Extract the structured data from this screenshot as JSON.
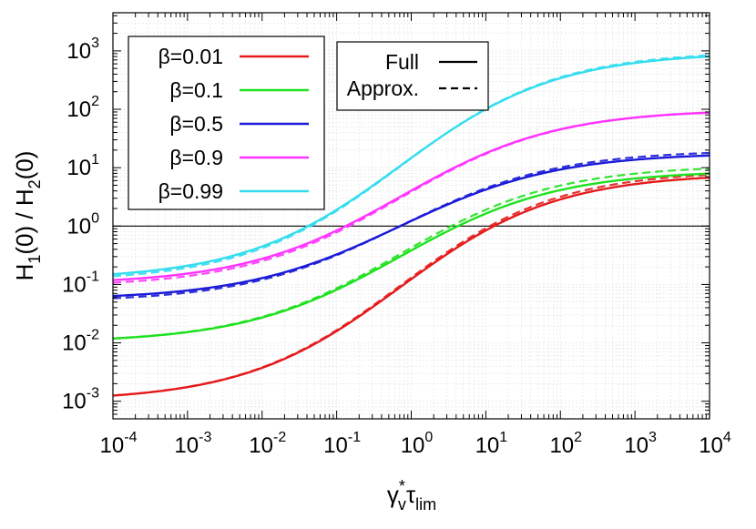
{
  "chart_data": {
    "type": "line",
    "x_scale": "log",
    "y_scale": "log",
    "xlim": [
      0.0001,
      10000
    ],
    "ylim": [
      0.0005,
      4500
    ],
    "grid": true,
    "x_ticks": [
      {
        "value": 0.0001,
        "base": "10",
        "exp": "-4"
      },
      {
        "value": 0.001,
        "base": "10",
        "exp": "-3"
      },
      {
        "value": 0.01,
        "base": "10",
        "exp": "-2"
      },
      {
        "value": 0.1,
        "base": "10",
        "exp": "-1"
      },
      {
        "value": 1,
        "base": "10",
        "exp": "0"
      },
      {
        "value": 10,
        "base": "10",
        "exp": "1"
      },
      {
        "value": 100,
        "base": "10",
        "exp": "2"
      },
      {
        "value": 1000,
        "base": "10",
        "exp": "3"
      },
      {
        "value": 10000,
        "base": "10",
        "exp": "4"
      }
    ],
    "y_ticks": [
      {
        "value": 0.001,
        "base": "10",
        "exp": "-3"
      },
      {
        "value": 0.01,
        "base": "10",
        "exp": "-2"
      },
      {
        "value": 0.1,
        "base": "10",
        "exp": "-1"
      },
      {
        "value": 1,
        "base": "10",
        "exp": "0"
      },
      {
        "value": 10,
        "base": "10",
        "exp": "1"
      },
      {
        "value": 100,
        "base": "10",
        "exp": "2"
      },
      {
        "value": 1000,
        "base": "10",
        "exp": "3"
      }
    ],
    "xlabel": {
      "main": "γ",
      "sup": "*",
      "sub1": "v",
      "mid": "τ",
      "sub2": "lim"
    },
    "ylabel": {
      "p1": "H",
      "s1": "1",
      "p2": "(0) / H",
      "s2": "2",
      "p3": "(0)"
    },
    "reference_line": {
      "y": 1
    },
    "legend_location": "top-left",
    "style_legend_location": "top-center",
    "series": [
      {
        "name": "β=0.01",
        "color": "#e41a1c",
        "low": 0.001,
        "high": 8
      },
      {
        "name": "β=0.1",
        "color": "#1ee11e",
        "low": 0.01,
        "high": 9
      },
      {
        "name": "β=0.5",
        "color": "#1a1ad8",
        "low": 0.055,
        "high": 18
      },
      {
        "name": "β=0.9",
        "color": "#ff33ff",
        "low": 0.1,
        "high": 100
      },
      {
        "name": "β=0.99",
        "color": "#33ddee",
        "low": 0.12,
        "high": 950
      }
    ],
    "approx_series": [
      {
        "name": "β=0.01",
        "low": 0.001,
        "high": 9
      },
      {
        "name": "β=0.1",
        "low": 0.01,
        "high": 11
      },
      {
        "name": "β=0.5",
        "low": 0.05,
        "high": 20
      },
      {
        "name": "β=0.9",
        "low": 0.09,
        "high": 100
      },
      {
        "name": "β=0.99",
        "low": 0.11,
        "high": 1000
      }
    ],
    "line_styles": [
      {
        "label": "Full",
        "dash": "solid"
      },
      {
        "label": "Approx.",
        "dash": "dashed"
      }
    ]
  }
}
